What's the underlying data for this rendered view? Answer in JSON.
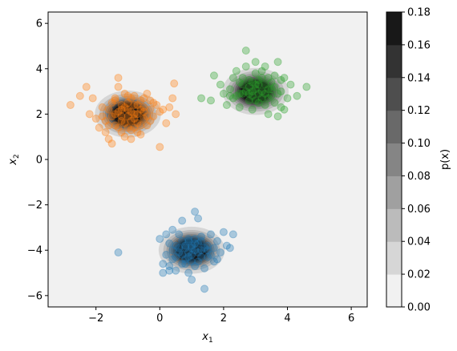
{
  "chart_data": {
    "type": "scatter",
    "title": "",
    "xlabel": "x",
    "xlabel_sub": "1",
    "ylabel": "x",
    "ylabel_sub": "2",
    "xlim": [
      -3.5,
      6.5
    ],
    "ylim": [
      -6.5,
      6.5
    ],
    "xticks": [
      -2,
      0,
      2,
      4,
      6
    ],
    "yticks": [
      -6,
      -4,
      -2,
      0,
      2,
      4,
      6
    ],
    "xtick_labels": [
      "−2",
      "0",
      "2",
      "4",
      "6"
    ],
    "ytick_labels": [
      "−6",
      "−4",
      "−2",
      "0",
      "2",
      "4",
      "6"
    ],
    "grid": false,
    "legend": "none",
    "background_level": 0.002,
    "series": [
      {
        "color": "#ff7f0e",
        "center": [
          -1.0,
          2.0
        ],
        "sigma": 0.45,
        "points": [
          [
            -2.8,
            2.4
          ],
          [
            -2.5,
            2.8
          ],
          [
            -2.3,
            3.2
          ],
          [
            -2.1,
            2.7
          ],
          [
            -2.2,
            2.0
          ],
          [
            -2.0,
            1.8
          ],
          [
            -1.9,
            1.4
          ],
          [
            -1.8,
            2.3
          ],
          [
            -1.7,
            1.2
          ],
          [
            -1.6,
            0.9
          ],
          [
            -1.5,
            0.7
          ],
          [
            -1.4,
            1.5
          ],
          [
            -1.4,
            2.6
          ],
          [
            -1.3,
            3.2
          ],
          [
            -1.3,
            3.6
          ],
          [
            -1.2,
            2.2
          ],
          [
            -1.2,
            1.7
          ],
          [
            -1.1,
            2.9
          ],
          [
            -1.1,
            1.0
          ],
          [
            -1.0,
            2.5
          ],
          [
            -1.0,
            1.9
          ],
          [
            -0.9,
            2.1
          ],
          [
            -0.9,
            1.3
          ],
          [
            -0.8,
            2.8
          ],
          [
            -0.8,
            2.4
          ],
          [
            -0.7,
            1.6
          ],
          [
            -0.7,
            2.0
          ],
          [
            -0.6,
            2.6
          ],
          [
            -0.6,
            1.1
          ],
          [
            -0.5,
            2.3
          ],
          [
            -0.5,
            1.8
          ],
          [
            -0.4,
            2.9
          ],
          [
            -0.4,
            1.5
          ],
          [
            -0.3,
            2.2
          ],
          [
            -0.3,
            2.6
          ],
          [
            -0.2,
            1.9
          ],
          [
            -0.1,
            2.4
          ],
          [
            0.0,
            2.1
          ],
          [
            0.0,
            0.55
          ],
          [
            0.2,
            1.6
          ],
          [
            0.3,
            2.3
          ],
          [
            0.4,
            2.7
          ],
          [
            0.45,
            3.35
          ],
          [
            0.5,
            2.0
          ],
          [
            -1.5,
            1.9
          ],
          [
            -1.3,
            1.4
          ],
          [
            -0.9,
            2.7
          ],
          [
            -0.6,
            1.5
          ],
          [
            -1.1,
            1.6
          ],
          [
            -0.8,
            1.8
          ],
          [
            -1.2,
            2.4
          ],
          [
            -0.5,
            2.1
          ],
          [
            -1.6,
            2.2
          ],
          [
            -0.7,
            2.4
          ],
          [
            -1.0,
            1.4
          ],
          [
            -1.4,
            2.0
          ],
          [
            -0.9,
            1.7
          ],
          [
            -1.2,
            1.9
          ],
          [
            -0.6,
            2.2
          ],
          [
            -0.8,
            2.0
          ],
          [
            -1.0,
            2.2
          ],
          [
            -1.3,
            2.1
          ],
          [
            -0.4,
            1.9
          ],
          [
            -1.1,
            2.3
          ],
          [
            -1.7,
            1.7
          ],
          [
            -0.7,
            1.2
          ],
          [
            -1.5,
            2.5
          ],
          [
            -0.3,
            1.7
          ],
          [
            -1.8,
            1.9
          ],
          [
            -0.2,
            2.5
          ],
          [
            -1.0,
            2.8
          ],
          [
            -0.9,
            0.9
          ],
          [
            -1.6,
            1.5
          ],
          [
            -0.5,
            2.7
          ],
          [
            -1.2,
            1.2
          ],
          [
            0.1,
            2.2
          ],
          [
            -0.8,
            1.4
          ],
          [
            -1.4,
            2.7
          ]
        ]
      },
      {
        "color": "#2ca02c",
        "center": [
          3.0,
          3.0
        ],
        "sigma": 0.45,
        "points": [
          [
            1.3,
            2.7
          ],
          [
            1.6,
            2.6
          ],
          [
            1.7,
            3.7
          ],
          [
            1.9,
            3.3
          ],
          [
            2.0,
            2.9
          ],
          [
            2.1,
            2.4
          ],
          [
            2.2,
            3.1
          ],
          [
            2.3,
            2.7
          ],
          [
            2.3,
            3.6
          ],
          [
            2.4,
            3.9
          ],
          [
            2.5,
            2.9
          ],
          [
            2.5,
            2.3
          ],
          [
            2.6,
            3.3
          ],
          [
            2.7,
            4.1
          ],
          [
            2.7,
            4.8
          ],
          [
            2.8,
            2.6
          ],
          [
            2.8,
            3.5
          ],
          [
            2.9,
            3.0
          ],
          [
            2.9,
            2.2
          ],
          [
            3.0,
            3.8
          ],
          [
            3.0,
            4.3
          ],
          [
            3.1,
            2.9
          ],
          [
            3.1,
            3.3
          ],
          [
            3.2,
            2.7
          ],
          [
            3.2,
            3.6
          ],
          [
            3.3,
            4.1
          ],
          [
            3.3,
            2.4
          ],
          [
            3.4,
            3.1
          ],
          [
            3.4,
            2.0
          ],
          [
            3.5,
            3.4
          ],
          [
            3.5,
            2.8
          ],
          [
            3.6,
            3.7
          ],
          [
            3.6,
            2.5
          ],
          [
            3.7,
            4.3
          ],
          [
            3.7,
            1.9
          ],
          [
            3.8,
            3.0
          ],
          [
            3.8,
            2.3
          ],
          [
            3.9,
            3.6
          ],
          [
            4.0,
            2.7
          ],
          [
            4.1,
            3.3
          ],
          [
            4.3,
            2.8
          ],
          [
            4.6,
            3.2
          ],
          [
            2.6,
            2.9
          ],
          [
            3.0,
            3.1
          ],
          [
            3.2,
            3.0
          ],
          [
            2.8,
            3.2
          ],
          [
            3.4,
            2.7
          ],
          [
            2.9,
            2.8
          ],
          [
            3.1,
            3.5
          ],
          [
            2.7,
            3.0
          ],
          [
            3.3,
            3.3
          ],
          [
            3.0,
            2.6
          ],
          [
            3.5,
            3.1
          ],
          [
            2.5,
            3.4
          ],
          [
            3.2,
            3.9
          ],
          [
            2.4,
            2.8
          ],
          [
            3.6,
            3.2
          ],
          [
            2.9,
            3.4
          ],
          [
            3.1,
            2.5
          ],
          [
            3.3,
            2.9
          ],
          [
            2.6,
            3.6
          ],
          [
            3.8,
            3.5
          ],
          [
            2.8,
            2.9
          ],
          [
            3.0,
            3.3
          ],
          [
            3.4,
            3.6
          ],
          [
            2.2,
            2.8
          ],
          [
            3.7,
            2.9
          ],
          [
            3.9,
            2.2
          ]
        ]
      },
      {
        "color": "#1f77b4",
        "center": [
          1.0,
          -4.0
        ],
        "sigma": 0.45,
        "points": [
          [
            -1.3,
            -4.1
          ],
          [
            0.0,
            -3.5
          ],
          [
            0.1,
            -4.6
          ],
          [
            0.1,
            -5.0
          ],
          [
            0.2,
            -3.3
          ],
          [
            0.2,
            -4.2
          ],
          [
            0.3,
            -4.7
          ],
          [
            0.3,
            -3.7
          ],
          [
            0.4,
            -4.4
          ],
          [
            0.4,
            -3.1
          ],
          [
            0.5,
            -4.9
          ],
          [
            0.5,
            -3.8
          ],
          [
            0.6,
            -4.1
          ],
          [
            0.6,
            -3.3
          ],
          [
            0.7,
            -4.6
          ],
          [
            0.7,
            -2.7
          ],
          [
            0.8,
            -3.9
          ],
          [
            0.8,
            -4.4
          ],
          [
            0.9,
            -5.0
          ],
          [
            0.9,
            -3.5
          ],
          [
            1.0,
            -4.2
          ],
          [
            1.0,
            -5.3
          ],
          [
            1.1,
            -2.3
          ],
          [
            1.1,
            -3.7
          ],
          [
            1.2,
            -4.5
          ],
          [
            1.2,
            -2.6
          ],
          [
            1.3,
            -4.0
          ],
          [
            1.3,
            -3.4
          ],
          [
            1.4,
            -4.8
          ],
          [
            1.4,
            -5.7
          ],
          [
            1.5,
            -3.8
          ],
          [
            1.5,
            -4.3
          ],
          [
            1.6,
            -3.3
          ],
          [
            1.7,
            -4.5
          ],
          [
            1.8,
            -3.6
          ],
          [
            1.9,
            -4.1
          ],
          [
            2.0,
            -3.2
          ],
          [
            2.1,
            -3.8
          ],
          [
            2.2,
            -3.9
          ],
          [
            2.3,
            -3.3
          ],
          [
            0.8,
            -3.8
          ],
          [
            1.0,
            -3.9
          ],
          [
            0.9,
            -4.1
          ],
          [
            1.1,
            -4.0
          ],
          [
            1.2,
            -3.7
          ],
          [
            0.7,
            -4.2
          ],
          [
            1.3,
            -4.3
          ],
          [
            0.9,
            -3.6
          ],
          [
            1.0,
            -4.5
          ],
          [
            1.1,
            -3.5
          ],
          [
            1.4,
            -3.9
          ],
          [
            0.6,
            -3.9
          ],
          [
            1.2,
            -4.1
          ],
          [
            0.8,
            -4.6
          ],
          [
            1.5,
            -4.0
          ],
          [
            0.5,
            -4.3
          ],
          [
            1.0,
            -3.8
          ],
          [
            0.9,
            -4.3
          ],
          [
            1.3,
            -3.6
          ],
          [
            0.7,
            -3.6
          ],
          [
            1.6,
            -4.2
          ],
          [
            1.1,
            -4.7
          ],
          [
            0.4,
            -4.0
          ],
          [
            1.8,
            -4.4
          ],
          [
            0.3,
            -4.9
          ],
          [
            1.7,
            -3.9
          ]
        ]
      }
    ],
    "colorbar": {
      "label": "p(x)",
      "min": 0.0,
      "max": 0.18,
      "step": 0.02,
      "ticks": [
        0.0,
        0.02,
        0.04,
        0.06,
        0.08,
        0.1,
        0.12,
        0.14,
        0.16,
        0.18
      ],
      "tick_labels": [
        "0.00",
        "0.02",
        "0.04",
        "0.06",
        "0.08",
        "0.10",
        "0.12",
        "0.14",
        "0.16",
        "0.18"
      ]
    }
  }
}
